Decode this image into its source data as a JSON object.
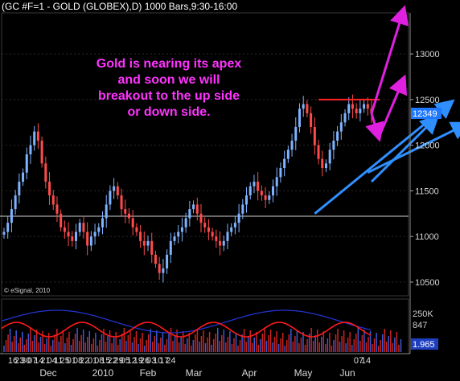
{
  "title": "(GC #F=1 - GOLD (GLOBEX),D) 1000 Bars,9:30-16:00",
  "watermark": "© eSignal, 2010",
  "annotation_lines": [
    "Gold is nearing its apex",
    "and soon we will",
    "breakout to the up side",
    "or down side."
  ],
  "colors": {
    "background": "#000000",
    "up_bar": "#7fb3ff",
    "down_bar": "#ff4b4b",
    "annotation_text": "#ff33ff",
    "magenta_arrow": "#e020e0",
    "blue_trendline": "#2f8fff",
    "resistance": "#ff2222",
    "last_price_box": "#1e78ff"
  },
  "chart_data": [
    {
      "type": "candlestick",
      "series_name": "GC #F=1 - GOLD (GLOBEX)",
      "ylim": [
        10350,
        13450
      ],
      "y_ticks": [
        10500,
        11000,
        11500,
        12000,
        12500,
        13000
      ],
      "last_price": 12349,
      "last_price_label": "12349",
      "x_day_labels": [
        "16",
        "23",
        "30",
        "07",
        "14",
        "21",
        "04",
        "11",
        "25",
        "01",
        "08",
        "22",
        "01",
        "08",
        "15",
        "22",
        "29",
        "05",
        "12",
        "19",
        "26",
        "03",
        "10",
        "17",
        "24",
        "07",
        "14"
      ],
      "x_month_labels": [
        "Dec",
        "2010",
        "Feb",
        "Mar",
        "Apr",
        "May",
        "Jun"
      ],
      "closes": [
        11050,
        11150,
        11300,
        11450,
        11600,
        11700,
        11900,
        12000,
        12150,
        12050,
        11800,
        11600,
        11450,
        11350,
        11250,
        11100,
        11050,
        11000,
        10950,
        11050,
        11150,
        11050,
        10900,
        11000,
        11050,
        11100,
        11200,
        11350,
        11500,
        11550,
        11450,
        11300,
        11250,
        11200,
        11100,
        11050,
        10950,
        10900,
        10950,
        10800,
        10700,
        10600,
        10650,
        10800,
        10950,
        11000,
        11050,
        11100,
        11200,
        11300,
        11350,
        11250,
        11150,
        11100,
        11050,
        11000,
        10950,
        10900,
        10950,
        11050,
        11100,
        11150,
        11250,
        11350,
        11450,
        11550,
        11600,
        11500,
        11450,
        11400,
        11450,
        11550,
        11650,
        11750,
        11850,
        11950,
        12050,
        12200,
        12400,
        12450,
        12350,
        12200,
        12000,
        11850,
        11750,
        11800,
        11950,
        12050,
        12150,
        12250,
        12350,
        12450,
        12400,
        12350,
        12400,
        12450,
        12400,
        12349
      ],
      "resistance_level": 12500,
      "trend_lines": [
        {
          "from": [
            82,
            11250
          ],
          "to": [
            118,
            12470
          ]
        },
        {
          "from": [
            97,
            11600
          ],
          "to": [
            114,
            12300
          ]
        },
        {
          "from": [
            96,
            11700
          ],
          "to": [
            122,
            12230
          ]
        }
      ]
    },
    {
      "type": "oscillator",
      "y_tick_labels": [
        "250K",
        "847",
        "1.965"
      ],
      "current_value_label": "1.965"
    }
  ]
}
